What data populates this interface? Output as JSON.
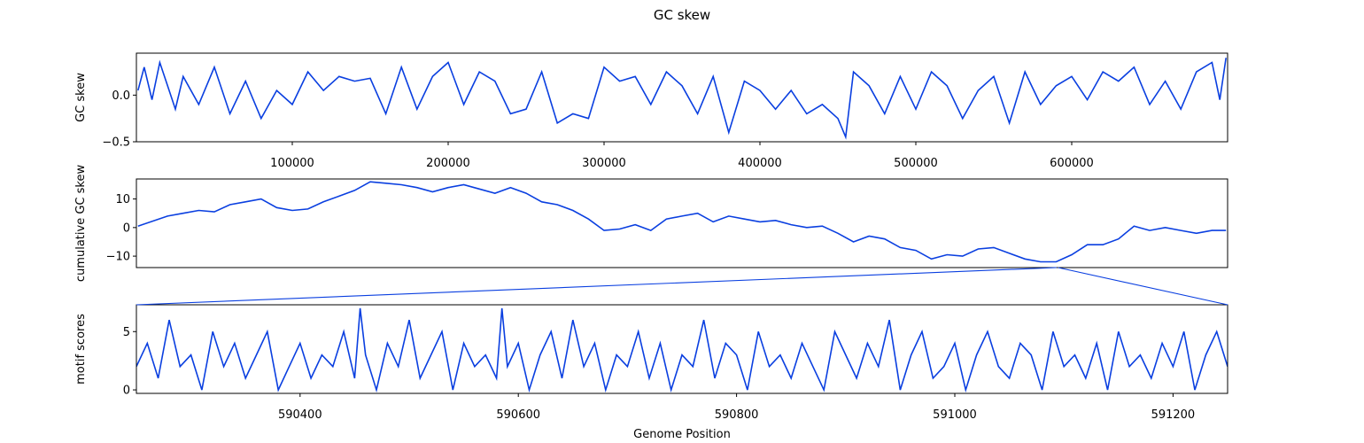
{
  "title": "GC skew",
  "xlabel": "Genome Position",
  "line_color": "#0a3fe0",
  "chart_data": [
    {
      "type": "line",
      "name": "gc-skew-panel",
      "ylabel": "GC skew",
      "xlim": [
        1,
        700000
      ],
      "ylim": [
        -0.5,
        0.45
      ],
      "xticks": [
        100000,
        200000,
        300000,
        400000,
        500000,
        600000
      ],
      "yticks": [
        -0.5,
        0.0
      ],
      "ytick_labels": [
        "−0.5",
        "0.0"
      ],
      "x": [
        1000,
        5000,
        10000,
        15000,
        20000,
        25000,
        30000,
        40000,
        50000,
        60000,
        70000,
        80000,
        90000,
        100000,
        110000,
        120000,
        130000,
        140000,
        150000,
        160000,
        170000,
        180000,
        190000,
        200000,
        210000,
        220000,
        230000,
        240000,
        250000,
        260000,
        270000,
        280000,
        290000,
        300000,
        310000,
        320000,
        330000,
        340000,
        350000,
        360000,
        370000,
        380000,
        390000,
        400000,
        410000,
        420000,
        430000,
        440000,
        450000,
        455000,
        460000,
        470000,
        480000,
        490000,
        500000,
        510000,
        520000,
        530000,
        540000,
        550000,
        560000,
        570000,
        580000,
        590000,
        600000,
        610000,
        620000,
        630000,
        640000,
        650000,
        660000,
        670000,
        680000,
        690000,
        695000,
        699000
      ],
      "y": [
        0.05,
        0.3,
        -0.05,
        0.35,
        0.1,
        -0.15,
        0.2,
        -0.1,
        0.3,
        -0.2,
        0.15,
        -0.25,
        0.05,
        -0.1,
        0.25,
        0.05,
        0.2,
        0.15,
        0.18,
        -0.2,
        0.3,
        -0.15,
        0.2,
        0.35,
        -0.1,
        0.25,
        0.15,
        -0.2,
        -0.15,
        0.25,
        -0.3,
        -0.2,
        -0.25,
        0.3,
        0.15,
        0.2,
        -0.1,
        0.25,
        0.1,
        -0.2,
        0.2,
        -0.4,
        0.15,
        0.05,
        -0.15,
        0.05,
        -0.2,
        -0.1,
        -0.25,
        -0.45,
        0.25,
        0.1,
        -0.2,
        0.2,
        -0.15,
        0.25,
        0.1,
        -0.25,
        0.05,
        0.2,
        -0.3,
        0.25,
        -0.1,
        0.1,
        0.2,
        -0.05,
        0.25,
        0.15,
        0.3,
        -0.1,
        0.15,
        -0.15,
        0.25,
        0.35,
        -0.05,
        0.4
      ]
    },
    {
      "type": "line",
      "name": "cumulative-panel",
      "ylabel": "cumulative GC skew",
      "xlim": [
        1,
        700000
      ],
      "ylim": [
        -14,
        17
      ],
      "yticks": [
        -10,
        0,
        10
      ],
      "ytick_labels": [
        "−10",
        "0",
        "10"
      ],
      "x": [
        1000,
        20000,
        30000,
        40000,
        50000,
        60000,
        70000,
        80000,
        90000,
        100000,
        110000,
        120000,
        130000,
        140000,
        150000,
        160000,
        170000,
        180000,
        190000,
        200000,
        210000,
        220000,
        230000,
        240000,
        250000,
        260000,
        270000,
        280000,
        290000,
        300000,
        310000,
        320000,
        330000,
        340000,
        350000,
        360000,
        370000,
        380000,
        390000,
        400000,
        410000,
        420000,
        430000,
        440000,
        450000,
        460000,
        470000,
        480000,
        490000,
        500000,
        510000,
        520000,
        530000,
        540000,
        550000,
        560000,
        570000,
        580000,
        590000,
        600000,
        610000,
        620000,
        630000,
        640000,
        650000,
        660000,
        670000,
        680000,
        690000,
        699000
      ],
      "y": [
        0.5,
        4,
        5,
        6,
        5.5,
        8,
        9,
        10,
        7,
        6,
        6.5,
        9,
        11,
        13,
        16,
        15.5,
        15,
        14,
        12.5,
        14,
        15,
        13.5,
        12,
        14,
        12,
        9,
        8,
        6,
        3,
        -1,
        -0.5,
        1,
        -1,
        3,
        4,
        5,
        2,
        4,
        3,
        2,
        2.5,
        1,
        0,
        0.5,
        -2,
        -5,
        -3,
        -4,
        -7,
        -8,
        -11,
        -9.5,
        -10,
        -7.5,
        -7,
        -9,
        -11,
        -12,
        -12,
        -9.5,
        -6,
        -6,
        -4,
        0.5,
        -1,
        0,
        -1,
        -2,
        -1,
        -1
      ]
    },
    {
      "type": "line",
      "name": "motif-panel",
      "ylabel": "motif scores",
      "xlim": [
        590250,
        591250
      ],
      "ylim": [
        -0.3,
        7.3
      ],
      "xticks": [
        590400,
        590600,
        590800,
        591000,
        591200
      ],
      "yticks": [
        0,
        5
      ],
      "ytick_labels": [
        "0",
        "5"
      ],
      "x": [
        590250,
        590260,
        590270,
        590280,
        590290,
        590300,
        590310,
        590320,
        590330,
        590340,
        590350,
        590360,
        590370,
        590380,
        590390,
        590400,
        590410,
        590420,
        590430,
        590440,
        590450,
        590455,
        590460,
        590470,
        590480,
        590490,
        590500,
        590510,
        590520,
        590530,
        590540,
        590550,
        590560,
        590570,
        590580,
        590585,
        590590,
        590600,
        590610,
        590620,
        590630,
        590640,
        590650,
        590660,
        590670,
        590680,
        590690,
        590700,
        590710,
        590720,
        590730,
        590740,
        590750,
        590760,
        590770,
        590780,
        590790,
        590800,
        590810,
        590820,
        590830,
        590840,
        590850,
        590860,
        590870,
        590880,
        590890,
        590900,
        590910,
        590920,
        590930,
        590940,
        590950,
        590960,
        590970,
        590980,
        590990,
        591000,
        591010,
        591020,
        591030,
        591040,
        591050,
        591060,
        591070,
        591080,
        591090,
        591100,
        591110,
        591120,
        591130,
        591140,
        591150,
        591160,
        591170,
        591180,
        591190,
        591200,
        591210,
        591220,
        591230,
        591240,
        591250
      ],
      "y": [
        2,
        4,
        1,
        6,
        2,
        3,
        0,
        5,
        2,
        4,
        1,
        3,
        5,
        0,
        2,
        4,
        1,
        3,
        2,
        5,
        1,
        7,
        3,
        0,
        4,
        2,
        6,
        1,
        3,
        5,
        0,
        4,
        2,
        3,
        1,
        7,
        2,
        4,
        0,
        3,
        5,
        1,
        6,
        2,
        4,
        0,
        3,
        2,
        5,
        1,
        4,
        0,
        3,
        2,
        6,
        1,
        4,
        3,
        0,
        5,
        2,
        3,
        1,
        4,
        2,
        0,
        5,
        3,
        1,
        4,
        2,
        6,
        0,
        3,
        5,
        1,
        2,
        4,
        0,
        3,
        5,
        2,
        1,
        4,
        3,
        0,
        5,
        2,
        3,
        1,
        4,
        0,
        5,
        2,
        3,
        1,
        4,
        2,
        5,
        0,
        3,
        5,
        2
      ]
    }
  ]
}
